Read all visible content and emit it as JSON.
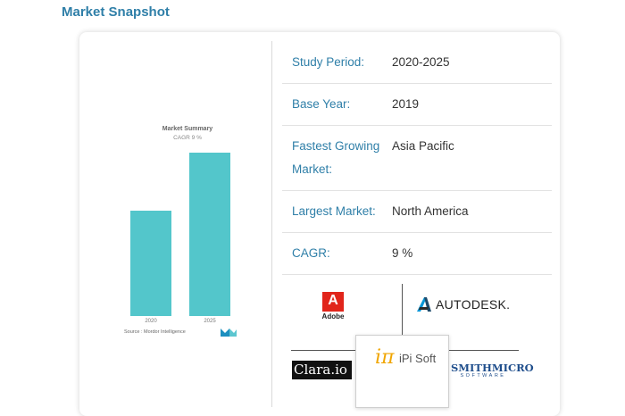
{
  "heading": "Market Snapshot",
  "chart_data": {
    "type": "bar",
    "title": "Market Summary",
    "subtitle": "CAGR 9 %",
    "categories": [
      "2020",
      "2025"
    ],
    "values": [
      1.0,
      1.55
    ],
    "source": "Source : Mordor Intelligence",
    "color": "#53c6cb"
  },
  "snapshot": [
    {
      "label": "Study Period:",
      "value": "2020-2025"
    },
    {
      "label": "Base Year:",
      "value": "2019"
    },
    {
      "label_line1": "Fastest Growing",
      "label_line2": "Market:",
      "value": "Asia Pacific"
    },
    {
      "label": "Largest Market:",
      "value": "North America"
    },
    {
      "label": "CAGR:",
      "value": "9 %"
    }
  ],
  "players": {
    "adobe": "Adobe",
    "autodesk": "AUTODESK.",
    "pisoft": "iPi Soft",
    "pisoft_mark": "iπ",
    "clara": "Clara.io",
    "smithmicro": "SMITHMICRO",
    "smithmicro_sub": "SOFTWARE"
  }
}
